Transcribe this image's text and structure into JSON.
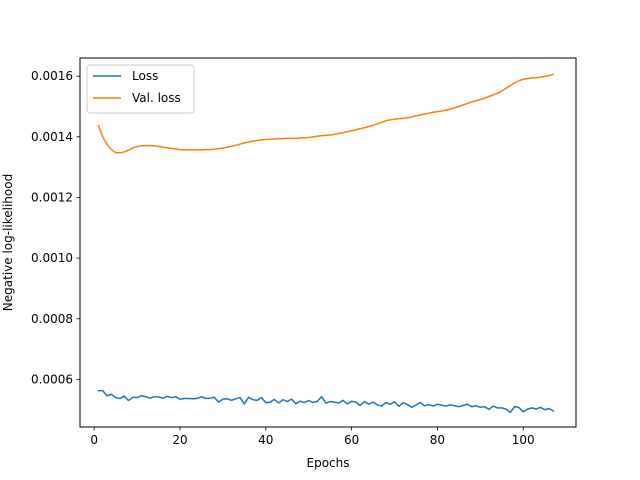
{
  "chart_data": {
    "type": "line",
    "title": "",
    "xlabel": "Epochs",
    "ylabel": "Negative log-likelihood",
    "xlim": [
      -3.3,
      112.3
    ],
    "ylim": [
      0.000443,
      0.00166
    ],
    "xticks": [
      0,
      20,
      40,
      60,
      80,
      100
    ],
    "xtick_labels": [
      "0",
      "20",
      "40",
      "60",
      "80",
      "100"
    ],
    "yticks": [
      0.0006,
      0.0008,
      0.001,
      0.0012,
      0.0014,
      0.0016
    ],
    "ytick_labels": [
      "0.0006",
      "0.0008",
      "0.0010",
      "0.0012",
      "0.0014",
      "0.0016"
    ],
    "grid": false,
    "legend_position": "upper-left",
    "series": [
      {
        "name": "Loss",
        "color": "#1f77b4",
        "x": [
          1,
          2,
          3,
          4,
          5,
          6,
          7,
          8,
          9,
          10,
          11,
          12,
          13,
          14,
          15,
          16,
          17,
          18,
          19,
          20,
          21,
          22,
          23,
          24,
          25,
          26,
          27,
          28,
          29,
          30,
          31,
          32,
          33,
          34,
          35,
          36,
          37,
          38,
          39,
          40,
          41,
          42,
          43,
          44,
          45,
          46,
          47,
          48,
          49,
          50,
          51,
          52,
          53,
          54,
          55,
          56,
          57,
          58,
          59,
          60,
          61,
          62,
          63,
          64,
          65,
          66,
          67,
          68,
          69,
          70,
          71,
          72,
          73,
          74,
          75,
          76,
          77,
          78,
          79,
          80,
          81,
          82,
          83,
          84,
          85,
          86,
          87,
          88,
          89,
          90,
          91,
          92,
          93,
          94,
          95,
          96,
          97,
          98,
          99,
          100,
          101,
          102,
          103,
          104,
          105,
          106,
          107
        ],
        "y": [
          0.000563,
          0.000563,
          0.000546,
          0.000551,
          0.00054,
          0.000537,
          0.000545,
          0.00053,
          0.000541,
          0.00054,
          0.000546,
          0.000543,
          0.000538,
          0.000543,
          0.000542,
          0.000538,
          0.000544,
          0.00054,
          0.000543,
          0.000535,
          0.000537,
          0.000537,
          0.000536,
          0.000537,
          0.000543,
          0.000537,
          0.000538,
          0.000541,
          0.000525,
          0.000535,
          0.000536,
          0.000531,
          0.000536,
          0.00054,
          0.000519,
          0.000541,
          0.000533,
          0.000531,
          0.00054,
          0.000523,
          0.000525,
          0.000534,
          0.000522,
          0.000533,
          0.000527,
          0.000535,
          0.00052,
          0.000528,
          0.000524,
          0.00053,
          0.000524,
          0.000527,
          0.000543,
          0.000522,
          0.000527,
          0.000525,
          0.000522,
          0.000531,
          0.000519,
          0.000528,
          0.000525,
          0.000514,
          0.000527,
          0.000518,
          0.000525,
          0.000516,
          0.000512,
          0.000524,
          0.000518,
          0.000526,
          0.000511,
          0.000523,
          0.000517,
          0.000508,
          0.000516,
          0.000524,
          0.000513,
          0.000517,
          0.000512,
          0.000518,
          0.000515,
          0.000512,
          0.000516,
          0.000513,
          0.00051,
          0.000514,
          0.000518,
          0.00051,
          0.000513,
          0.000508,
          0.00051,
          0.000501,
          0.000512,
          0.000506,
          0.000506,
          0.000502,
          0.000491,
          0.000511,
          0.000507,
          0.000493,
          0.000502,
          0.000506,
          0.000502,
          0.000508,
          0.0005,
          0.000504,
          0.000496
        ]
      },
      {
        "name": "Val. loss",
        "color": "#ff7f0e",
        "x": [
          1,
          2,
          3,
          4,
          5,
          6,
          7,
          8,
          9,
          10,
          11,
          12,
          13,
          14,
          15,
          16,
          17,
          18,
          19,
          20,
          21,
          22,
          23,
          24,
          25,
          26,
          27,
          28,
          29,
          30,
          31,
          32,
          33,
          34,
          35,
          36,
          37,
          38,
          39,
          40,
          41,
          42,
          43,
          44,
          45,
          46,
          47,
          48,
          49,
          50,
          51,
          52,
          53,
          54,
          55,
          56,
          57,
          58,
          59,
          60,
          61,
          62,
          63,
          64,
          65,
          66,
          67,
          68,
          69,
          70,
          71,
          72,
          73,
          74,
          75,
          76,
          77,
          78,
          79,
          80,
          81,
          82,
          83,
          84,
          85,
          86,
          87,
          88,
          89,
          90,
          91,
          92,
          93,
          94,
          95,
          96,
          97,
          98,
          99,
          100,
          101,
          102,
          103,
          104,
          105,
          106,
          107
        ],
        "y": [
          0.001437,
          0.0014,
          0.001375,
          0.001358,
          0.001348,
          0.001347,
          0.00135,
          0.001356,
          0.001363,
          0.001368,
          0.00137,
          0.001371,
          0.001371,
          0.00137,
          0.001368,
          0.001366,
          0.001364,
          0.001362,
          0.00136,
          0.001358,
          0.001357,
          0.001357,
          0.001357,
          0.001357,
          0.001357,
          0.001358,
          0.001358,
          0.001359,
          0.001361,
          0.001363,
          0.001366,
          0.001369,
          0.001372,
          0.001376,
          0.00138,
          0.001383,
          0.001386,
          0.001388,
          0.00139,
          0.001391,
          0.001392,
          0.001393,
          0.001394,
          0.001394,
          0.001395,
          0.001395,
          0.001395,
          0.001396,
          0.001397,
          0.001398,
          0.0014,
          0.001402,
          0.001404,
          0.001405,
          0.001406,
          0.001408,
          0.001411,
          0.001414,
          0.001417,
          0.00142,
          0.001423,
          0.001427,
          0.00143,
          0.001434,
          0.001438,
          0.001443,
          0.001448,
          0.001453,
          0.001456,
          0.001458,
          0.00146,
          0.001461,
          0.001463,
          0.001466,
          0.001469,
          0.001472,
          0.001475,
          0.001478,
          0.001481,
          0.001483,
          0.001485,
          0.001488,
          0.001492,
          0.001496,
          0.0015,
          0.001505,
          0.00151,
          0.001515,
          0.001519,
          0.001523,
          0.001528,
          0.001533,
          0.001538,
          0.001544,
          0.001551,
          0.00156,
          0.001569,
          0.001578,
          0.001585,
          0.00159,
          0.001592,
          0.001594,
          0.001595,
          0.001597,
          0.001599,
          0.001602,
          0.001606
        ]
      }
    ]
  }
}
